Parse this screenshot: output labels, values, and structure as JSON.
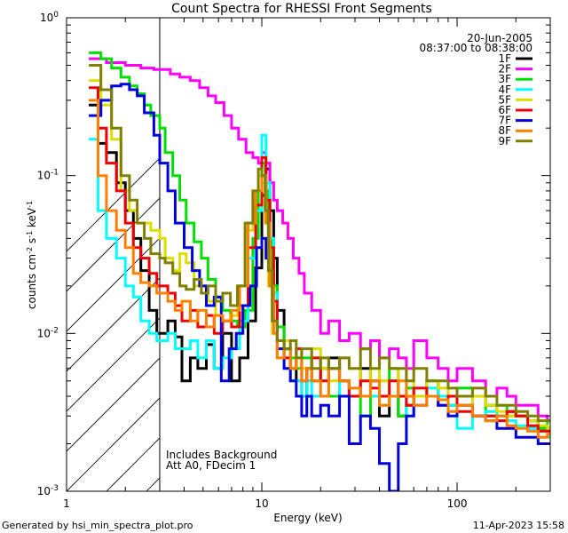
{
  "chart_data": {
    "type": "line",
    "title": "Count Spectra for RHESSI Front Segments",
    "xlabel": "Energy (keV)",
    "ylabel": "counts cm^-2 s^-1 keV^-1",
    "xscale": "log",
    "yscale": "log",
    "xlim": [
      1.0,
      300.0
    ],
    "ylim": [
      0.001,
      1.0
    ],
    "x_ticks": [
      {
        "value": 1,
        "label": "1"
      },
      {
        "value": 10,
        "label": "10"
      },
      {
        "value": 100,
        "label": "100"
      }
    ],
    "y_ticks": [
      {
        "value": 0.001,
        "base": "10",
        "exp": "-3"
      },
      {
        "value": 0.01,
        "base": "10",
        "exp": "-2"
      },
      {
        "value": 0.1,
        "base": "10",
        "exp": "-1"
      },
      {
        "value": 1,
        "base": "10",
        "exp": "0"
      }
    ],
    "hatched_region": {
      "x_from": 1.0,
      "x_to": 3.0
    },
    "date": "20-Jun-2005",
    "time_range": "08:37:00 to 08:38:00",
    "annotations": [
      "Includes Background",
      "Att A0, FDecim 1"
    ],
    "series": [
      {
        "name": "1F",
        "color": "#000000",
        "x": [
          1.3,
          1.45,
          1.6,
          1.8,
          2.0,
          2.2,
          2.4,
          2.65,
          2.9,
          3.0,
          3.3,
          3.6,
          3.9,
          4.3,
          4.7,
          5.2,
          5.7,
          6.3,
          7.0,
          7.7,
          8.5,
          9.3,
          10.0,
          10.5,
          11.0,
          11.5,
          12.0,
          13,
          14,
          15,
          16,
          17,
          18,
          20,
          22,
          25,
          28,
          32,
          36,
          40,
          45,
          50,
          55,
          60,
          70,
          80,
          90,
          100,
          120,
          140,
          160,
          180,
          200,
          230,
          260,
          290
        ],
        "y": [
          0.28,
          0.16,
          0.14,
          0.09,
          0.06,
          0.04,
          0.025,
          0.014,
          0.01,
          0.01,
          0.012,
          0.0095,
          0.005,
          0.007,
          0.006,
          0.0085,
          0.006,
          0.01,
          0.005,
          0.007,
          0.012,
          0.026,
          0.075,
          0.11,
          0.06,
          0.03,
          0.014,
          0.008,
          0.006,
          0.005,
          0.004,
          0.006,
          0.005,
          0.006,
          0.007,
          0.005,
          0.004,
          0.006,
          0.005,
          0.003,
          0.004,
          0.003,
          0.0035,
          0.004,
          0.005,
          0.004,
          0.0035,
          0.004,
          0.004,
          0.0035,
          0.003,
          0.0032,
          0.003,
          0.0028,
          0.0025,
          0.0025
        ]
      },
      {
        "name": "2F",
        "color": "#ff00ff",
        "x": [
          1.3,
          1.6,
          2.0,
          2.4,
          2.8,
          3.0,
          3.4,
          3.8,
          4.3,
          4.8,
          5.3,
          5.8,
          6.4,
          7.0,
          7.6,
          8.3,
          9.0,
          9.6,
          10.0,
          10.5,
          11.0,
          11.5,
          12.0,
          12.8,
          13.6,
          14.5,
          15.5,
          16.5,
          18,
          20,
          22,
          25,
          28,
          32,
          36,
          40,
          45,
          50,
          55,
          60,
          70,
          80,
          90,
          100,
          120,
          140,
          160,
          180,
          200,
          230,
          260,
          290
        ],
        "y": [
          0.55,
          0.52,
          0.5,
          0.48,
          0.47,
          0.47,
          0.44,
          0.42,
          0.4,
          0.36,
          0.32,
          0.29,
          0.24,
          0.2,
          0.17,
          0.14,
          0.13,
          0.12,
          0.14,
          0.12,
          0.09,
          0.07,
          0.06,
          0.05,
          0.04,
          0.03,
          0.024,
          0.018,
          0.014,
          0.01,
          0.012,
          0.009,
          0.01,
          0.008,
          0.009,
          0.007,
          0.008,
          0.007,
          0.006,
          0.009,
          0.007,
          0.006,
          0.005,
          0.006,
          0.005,
          0.004,
          0.0045,
          0.004,
          0.0035,
          0.0035,
          0.003,
          0.0028
        ]
      },
      {
        "name": "3F",
        "color": "#00e000",
        "x": [
          1.3,
          1.5,
          1.7,
          1.9,
          2.1,
          2.3,
          2.5,
          2.7,
          3.0,
          3.2,
          3.5,
          3.8,
          4.1,
          4.5,
          4.9,
          5.3,
          5.8,
          6.3,
          6.9,
          7.5,
          8.2,
          9.0,
          9.6,
          10.0,
          10.4,
          10.8,
          11.3,
          12,
          13,
          14,
          15,
          16,
          18,
          20,
          22,
          25,
          28,
          32,
          36,
          40,
          45,
          50,
          55,
          60,
          70,
          80,
          90,
          100,
          120,
          140,
          160,
          180,
          200,
          230,
          260,
          290
        ],
        "y": [
          0.6,
          0.55,
          0.48,
          0.42,
          0.37,
          0.33,
          0.28,
          0.24,
          0.2,
          0.14,
          0.1,
          0.07,
          0.05,
          0.038,
          0.03,
          0.022,
          0.017,
          0.014,
          0.012,
          0.011,
          0.014,
          0.04,
          0.08,
          0.12,
          0.08,
          0.04,
          0.02,
          0.011,
          0.008,
          0.007,
          0.006,
          0.007,
          0.005,
          0.006,
          0.004,
          0.005,
          0.004,
          0.003,
          0.004,
          0.005,
          0.006,
          0.003,
          0.0045,
          0.004,
          0.005,
          0.004,
          0.0035,
          0.0045,
          0.004,
          0.003,
          0.0035,
          0.003,
          0.003,
          0.0028,
          0.0025,
          0.0028
        ]
      },
      {
        "name": "4F",
        "color": "#00ffff",
        "x": [
          1.3,
          1.45,
          1.6,
          1.8,
          2.0,
          2.2,
          2.4,
          2.65,
          2.9,
          3.0,
          3.3,
          3.6,
          3.9,
          4.3,
          4.7,
          5.2,
          5.7,
          6.3,
          7.0,
          7.7,
          8.5,
          9.3,
          10.0,
          10.5,
          11.0,
          11.5,
          12.0,
          13,
          14,
          15,
          16,
          17,
          18,
          20,
          22,
          25,
          28,
          32,
          36,
          40,
          45,
          50,
          55,
          60,
          70,
          80,
          90,
          100,
          120,
          140,
          160,
          180,
          200,
          230,
          260,
          290
        ],
        "y": [
          0.17,
          0.06,
          0.04,
          0.03,
          0.02,
          0.017,
          0.012,
          0.01,
          0.009,
          0.009,
          0.01,
          0.008,
          0.008,
          0.009,
          0.007,
          0.009,
          0.006,
          0.007,
          0.008,
          0.012,
          0.03,
          0.06,
          0.18,
          0.09,
          0.04,
          0.018,
          0.009,
          0.006,
          0.005,
          0.005,
          0.004,
          0.005,
          0.004,
          0.005,
          0.006,
          0.004,
          0.0045,
          0.005,
          0.004,
          0.0035,
          0.005,
          0.004,
          0.003,
          0.004,
          0.0045,
          0.004,
          0.0035,
          0.0025,
          0.003,
          0.0032,
          0.003,
          0.0028,
          0.0026,
          0.0025,
          0.0022,
          0.0022
        ]
      },
      {
        "name": "5F",
        "color": "#dddd00",
        "x": [
          1.3,
          1.5,
          1.7,
          1.9,
          2.1,
          2.3,
          2.5,
          2.7,
          3.0,
          3.2,
          3.5,
          3.8,
          4.1,
          4.5,
          4.9,
          5.3,
          5.8,
          6.3,
          6.9,
          7.5,
          8.2,
          9.0,
          9.6,
          10.0,
          10.4,
          10.8,
          11.3,
          12,
          13,
          14,
          15,
          16,
          18,
          20,
          22,
          25,
          28,
          32,
          36,
          40,
          45,
          50,
          55,
          60,
          70,
          80,
          90,
          100,
          120,
          140,
          160,
          180,
          200,
          230,
          260,
          290
        ],
        "y": [
          0.4,
          0.28,
          0.17,
          0.08,
          0.06,
          0.05,
          0.05,
          0.045,
          0.04,
          0.03,
          0.025,
          0.032,
          0.028,
          0.02,
          0.018,
          0.016,
          0.013,
          0.012,
          0.013,
          0.02,
          0.045,
          0.08,
          0.1,
          0.09,
          0.05,
          0.02,
          0.01,
          0.007,
          0.009,
          0.006,
          0.007,
          0.006,
          0.008,
          0.006,
          0.005,
          0.007,
          0.006,
          0.005,
          0.006,
          0.005,
          0.004,
          0.006,
          0.005,
          0.004,
          0.005,
          0.0045,
          0.004,
          0.0035,
          0.004,
          0.0035,
          0.0032,
          0.003,
          0.003,
          0.0028,
          0.0026,
          0.0025
        ]
      },
      {
        "name": "6F",
        "color": "#ee0000",
        "x": [
          1.3,
          1.45,
          1.6,
          1.8,
          2.0,
          2.2,
          2.4,
          2.65,
          2.9,
          3.0,
          3.3,
          3.6,
          3.9,
          4.3,
          4.7,
          5.2,
          5.7,
          6.3,
          7.0,
          7.7,
          8.5,
          9.3,
          10.0,
          10.5,
          11.0,
          11.5,
          12.0,
          13,
          14,
          15,
          16,
          17,
          18,
          20,
          22,
          25,
          28,
          32,
          36,
          40,
          45,
          50,
          55,
          60,
          70,
          80,
          90,
          100,
          120,
          140,
          160,
          180,
          200,
          230,
          260,
          290
        ],
        "y": [
          0.36,
          0.2,
          0.12,
          0.08,
          0.05,
          0.035,
          0.03,
          0.024,
          0.02,
          0.02,
          0.018,
          0.015,
          0.012,
          0.014,
          0.011,
          0.013,
          0.01,
          0.012,
          0.011,
          0.015,
          0.035,
          0.065,
          0.13,
          0.07,
          0.035,
          0.016,
          0.009,
          0.007,
          0.006,
          0.008,
          0.005,
          0.006,
          0.007,
          0.005,
          0.006,
          0.005,
          0.004,
          0.005,
          0.0045,
          0.004,
          0.005,
          0.004,
          0.0035,
          0.0045,
          0.004,
          0.0035,
          0.004,
          0.0032,
          0.003,
          0.003,
          0.0028,
          0.0032,
          0.003,
          0.0026,
          0.0024,
          0.0024
        ]
      },
      {
        "name": "7F",
        "color": "#0000dd",
        "x": [
          1.3,
          1.5,
          1.7,
          1.9,
          2.1,
          2.3,
          2.5,
          2.8,
          3.0,
          3.3,
          3.6,
          4.0,
          4.4,
          4.8,
          5.2,
          5.7,
          6.2,
          6.8,
          7.4,
          8.0,
          8.7,
          9.4,
          10.0,
          10.5,
          11.0,
          11.5,
          12,
          13,
          14,
          15,
          16,
          17,
          18,
          20,
          22,
          25,
          28,
          32,
          36,
          40,
          45,
          50,
          55,
          60,
          70,
          80,
          90,
          100,
          120,
          140,
          160,
          180,
          200,
          230,
          260,
          290
        ],
        "y": [
          0.24,
          0.3,
          0.37,
          0.38,
          0.35,
          0.32,
          0.25,
          0.18,
          0.12,
          0.08,
          0.05,
          0.035,
          0.025,
          0.02,
          0.015,
          0.017,
          0.005,
          0.008,
          0.01,
          0.015,
          0.02,
          0.035,
          0.04,
          0.03,
          0.02,
          0.012,
          0.008,
          0.006,
          0.005,
          0.004,
          0.003,
          0.004,
          0.003,
          0.0035,
          0.003,
          0.004,
          0.002,
          0.003,
          0.0025,
          0.0015,
          0.001,
          0.002,
          0.003,
          0.0035,
          0.004,
          0.0035,
          0.003,
          0.0035,
          0.003,
          0.0028,
          0.0025,
          0.0025,
          0.0022,
          0.0022,
          0.002,
          0.002
        ]
      },
      {
        "name": "8F",
        "color": "#ff8000",
        "x": [
          1.3,
          1.45,
          1.6,
          1.8,
          2.0,
          2.2,
          2.4,
          2.65,
          2.9,
          3.0,
          3.3,
          3.6,
          3.9,
          4.3,
          4.7,
          5.2,
          5.7,
          6.3,
          7.0,
          7.7,
          8.5,
          9.3,
          10.0,
          10.5,
          11.0,
          11.5,
          12.0,
          13,
          14,
          15,
          16,
          17,
          18,
          20,
          22,
          25,
          28,
          32,
          36,
          40,
          45,
          50,
          55,
          60,
          70,
          80,
          90,
          100,
          120,
          140,
          160,
          180,
          200,
          230,
          260,
          290
        ],
        "y": [
          0.3,
          0.1,
          0.06,
          0.045,
          0.035,
          0.024,
          0.021,
          0.02,
          0.018,
          0.018,
          0.016,
          0.014,
          0.016,
          0.012,
          0.014,
          0.011,
          0.013,
          0.012,
          0.014,
          0.02,
          0.05,
          0.08,
          0.1,
          0.05,
          0.02,
          0.01,
          0.007,
          0.008,
          0.006,
          0.007,
          0.005,
          0.006,
          0.005,
          0.004,
          0.006,
          0.005,
          0.0045,
          0.004,
          0.005,
          0.0035,
          0.004,
          0.005,
          0.004,
          0.0035,
          0.004,
          0.0038,
          0.0032,
          0.0035,
          0.003,
          0.0028,
          0.003,
          0.0026,
          0.0025,
          0.0024,
          0.0022,
          0.0023
        ]
      },
      {
        "name": "9F",
        "color": "#808000",
        "x": [
          1.3,
          1.5,
          1.7,
          1.9,
          2.1,
          2.3,
          2.5,
          2.7,
          3.0,
          3.2,
          3.5,
          3.8,
          4.1,
          4.5,
          4.9,
          5.3,
          5.8,
          6.3,
          6.9,
          7.5,
          8.2,
          9.0,
          9.6,
          10.0,
          10.4,
          10.8,
          11.3,
          12,
          13,
          14,
          15,
          16,
          18,
          20,
          22,
          25,
          28,
          32,
          36,
          40,
          45,
          50,
          55,
          60,
          70,
          80,
          90,
          100,
          120,
          140,
          160,
          180,
          200,
          230,
          260,
          290
        ],
        "y": [
          0.5,
          0.35,
          0.2,
          0.1,
          0.07,
          0.05,
          0.04,
          0.032,
          0.03,
          0.028,
          0.024,
          0.02,
          0.019,
          0.022,
          0.018,
          0.02,
          0.016,
          0.018,
          0.015,
          0.02,
          0.05,
          0.08,
          0.11,
          0.1,
          0.06,
          0.025,
          0.012,
          0.009,
          0.008,
          0.009,
          0.007,
          0.008,
          0.006,
          0.007,
          0.006,
          0.007,
          0.006,
          0.008,
          0.006,
          0.007,
          0.006,
          0.006,
          0.005,
          0.006,
          0.005,
          0.005,
          0.0045,
          0.004,
          0.0045,
          0.004,
          0.0035,
          0.0035,
          0.0032,
          0.003,
          0.0028,
          0.0028
        ]
      }
    ]
  },
  "footer": {
    "left": "Generated by hsi_min_spectra_plot.pro",
    "right": "11-Apr-2023 15:58"
  }
}
